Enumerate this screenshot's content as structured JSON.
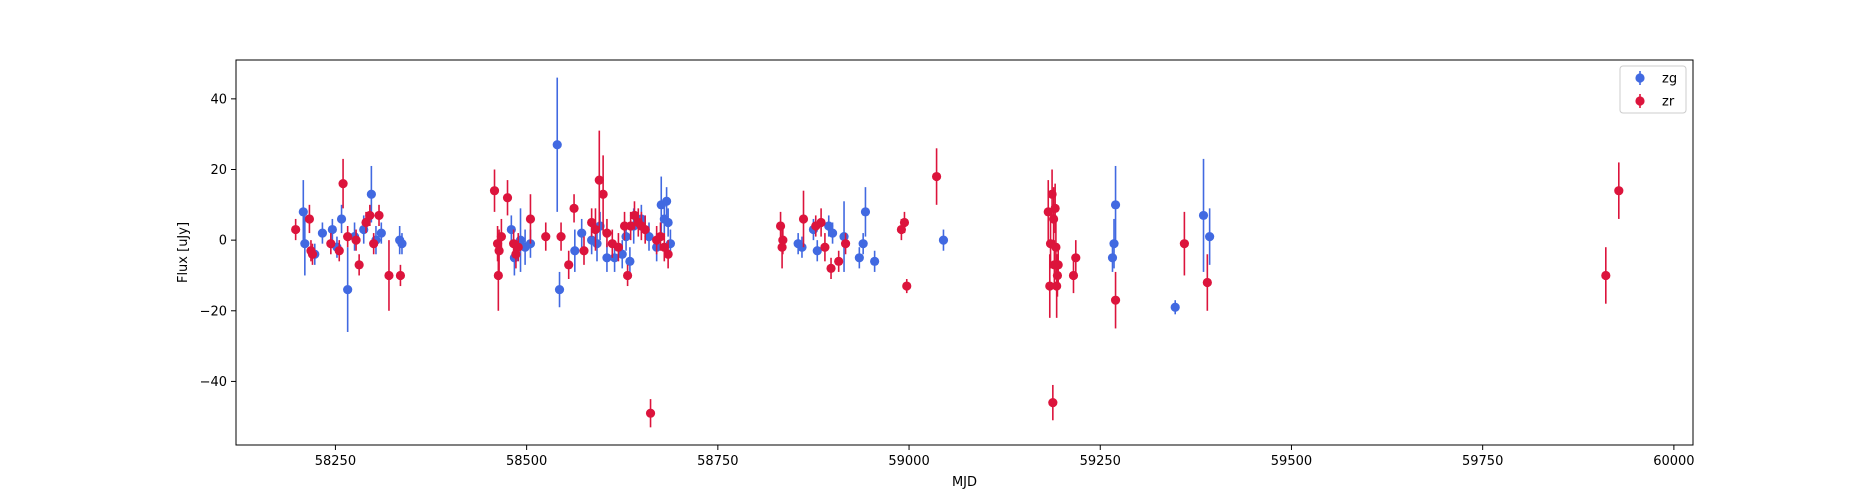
{
  "chart_data": {
    "type": "scatter",
    "xlabel": "MJD",
    "ylabel": "Flux [uJy]",
    "xlim": [
      58120,
      60025
    ],
    "ylim": [
      -58,
      51
    ],
    "xticks": [
      58250,
      58500,
      58750,
      59000,
      59250,
      59500,
      59750,
      60000
    ],
    "yticks": [
      -40,
      -20,
      0,
      20,
      40
    ],
    "legend_position": "top-right",
    "series": [
      {
        "name": "zg",
        "color": "#4169e1",
        "points": [
          {
            "x": 58208,
            "y": 8,
            "err": 9
          },
          {
            "x": 58210,
            "y": -1,
            "err": 9
          },
          {
            "x": 58223,
            "y": -4,
            "err": 3
          },
          {
            "x": 58233,
            "y": 2,
            "err": 3
          },
          {
            "x": 58246,
            "y": 3,
            "err": 3
          },
          {
            "x": 58252,
            "y": -2,
            "err": 3
          },
          {
            "x": 58258,
            "y": 6,
            "err": 4
          },
          {
            "x": 58266,
            "y": -14,
            "err": 12
          },
          {
            "x": 58275,
            "y": 1,
            "err": 4
          },
          {
            "x": 58287,
            "y": 3,
            "err": 4
          },
          {
            "x": 58297,
            "y": 13,
            "err": 8
          },
          {
            "x": 58303,
            "y": 0,
            "err": 4
          },
          {
            "x": 58310,
            "y": 2,
            "err": 3
          },
          {
            "x": 58334,
            "y": 0,
            "err": 4
          },
          {
            "x": 58337,
            "y": -1,
            "err": 3
          },
          {
            "x": 58480,
            "y": 3,
            "err": 4
          },
          {
            "x": 58484,
            "y": -5,
            "err": 5
          },
          {
            "x": 58492,
            "y": 0,
            "err": 9
          },
          {
            "x": 58498,
            "y": -2,
            "err": 5
          },
          {
            "x": 58505,
            "y": -1,
            "err": 4
          },
          {
            "x": 58540,
            "y": 27,
            "err": 19
          },
          {
            "x": 58543,
            "y": -14,
            "err": 5
          },
          {
            "x": 58563,
            "y": -3,
            "err": 6
          },
          {
            "x": 58572,
            "y": 2,
            "err": 4
          },
          {
            "x": 58585,
            "y": 0,
            "err": 4
          },
          {
            "x": 58592,
            "y": -1,
            "err": 5
          },
          {
            "x": 58596,
            "y": 4,
            "err": 4
          },
          {
            "x": 58605,
            "y": -5,
            "err": 4
          },
          {
            "x": 58615,
            "y": -5,
            "err": 4
          },
          {
            "x": 58625,
            "y": -4,
            "err": 4
          },
          {
            "x": 58630,
            "y": 1,
            "err": 4
          },
          {
            "x": 58635,
            "y": -6,
            "err": 4
          },
          {
            "x": 58640,
            "y": 4,
            "err": 5
          },
          {
            "x": 58650,
            "y": 6,
            "err": 4
          },
          {
            "x": 58660,
            "y": 1,
            "err": 4
          },
          {
            "x": 58670,
            "y": -2,
            "err": 4
          },
          {
            "x": 58676,
            "y": 10,
            "err": 8
          },
          {
            "x": 58680,
            "y": 6,
            "err": 4
          },
          {
            "x": 58683,
            "y": 11,
            "err": 4
          },
          {
            "x": 58685,
            "y": 5,
            "err": 4
          },
          {
            "x": 58688,
            "y": -1,
            "err": 4
          },
          {
            "x": 58855,
            "y": -1,
            "err": 3
          },
          {
            "x": 58860,
            "y": -2,
            "err": 3
          },
          {
            "x": 58875,
            "y": 3,
            "err": 3
          },
          {
            "x": 58880,
            "y": -3,
            "err": 3
          },
          {
            "x": 58895,
            "y": 4,
            "err": 3
          },
          {
            "x": 58900,
            "y": 2,
            "err": 3
          },
          {
            "x": 58915,
            "y": 1,
            "err": 10
          },
          {
            "x": 58935,
            "y": -5,
            "err": 3
          },
          {
            "x": 58940,
            "y": -1,
            "err": 3
          },
          {
            "x": 58943,
            "y": 8,
            "err": 7
          },
          {
            "x": 58955,
            "y": -6,
            "err": 3
          },
          {
            "x": 59045,
            "y": 0,
            "err": 3
          },
          {
            "x": 59266,
            "y": -5,
            "err": 4
          },
          {
            "x": 59268,
            "y": -1,
            "err": 7
          },
          {
            "x": 59270,
            "y": 10,
            "err": 11
          },
          {
            "x": 59348,
            "y": -19,
            "err": 2
          },
          {
            "x": 59385,
            "y": 7,
            "err": 16
          },
          {
            "x": 59393,
            "y": 1,
            "err": 8
          }
        ]
      },
      {
        "name": "zr",
        "color": "#dc143c",
        "points": [
          {
            "x": 58198,
            "y": 3,
            "err": 3
          },
          {
            "x": 58216,
            "y": 6,
            "err": 4
          },
          {
            "x": 58218,
            "y": -3,
            "err": 3
          },
          {
            "x": 58220,
            "y": -4,
            "err": 3
          },
          {
            "x": 58244,
            "y": -1,
            "err": 3
          },
          {
            "x": 58255,
            "y": -3,
            "err": 3
          },
          {
            "x": 58260,
            "y": 16,
            "err": 7
          },
          {
            "x": 58266,
            "y": 1,
            "err": 3
          },
          {
            "x": 58277,
            "y": 0,
            "err": 3
          },
          {
            "x": 58281,
            "y": -7,
            "err": 3
          },
          {
            "x": 58290,
            "y": 5,
            "err": 3
          },
          {
            "x": 58295,
            "y": 7,
            "err": 3
          },
          {
            "x": 58300,
            "y": -1,
            "err": 3
          },
          {
            "x": 58307,
            "y": 7,
            "err": 3
          },
          {
            "x": 58320,
            "y": -10,
            "err": 10
          },
          {
            "x": 58335,
            "y": -10,
            "err": 3
          },
          {
            "x": 58458,
            "y": 14,
            "err": 6
          },
          {
            "x": 58462,
            "y": -1,
            "err": 5
          },
          {
            "x": 58463,
            "y": -10,
            "err": 10
          },
          {
            "x": 58464,
            "y": -3,
            "err": 6
          },
          {
            "x": 58467,
            "y": 1,
            "err": 5
          },
          {
            "x": 58475,
            "y": 12,
            "err": 5
          },
          {
            "x": 58483,
            "y": -1,
            "err": 4
          },
          {
            "x": 58486,
            "y": -4,
            "err": 4
          },
          {
            "x": 58489,
            "y": -2,
            "err": 4
          },
          {
            "x": 58505,
            "y": 6,
            "err": 7
          },
          {
            "x": 58525,
            "y": 1,
            "err": 4
          },
          {
            "x": 58545,
            "y": 1,
            "err": 4
          },
          {
            "x": 58555,
            "y": -7,
            "err": 4
          },
          {
            "x": 58562,
            "y": 9,
            "err": 4
          },
          {
            "x": 58575,
            "y": -3,
            "err": 4
          },
          {
            "x": 58585,
            "y": 5,
            "err": 4
          },
          {
            "x": 58590,
            "y": 3,
            "err": 6
          },
          {
            "x": 58595,
            "y": 17,
            "err": 14
          },
          {
            "x": 58600,
            "y": 13,
            "err": 11
          },
          {
            "x": 58605,
            "y": 2,
            "err": 4
          },
          {
            "x": 58612,
            "y": -1,
            "err": 4
          },
          {
            "x": 58620,
            "y": -2,
            "err": 4
          },
          {
            "x": 58628,
            "y": 4,
            "err": 4
          },
          {
            "x": 58632,
            "y": -10,
            "err": 3
          },
          {
            "x": 58636,
            "y": 4,
            "err": 4
          },
          {
            "x": 58641,
            "y": 7,
            "err": 4
          },
          {
            "x": 58646,
            "y": 5,
            "err": 4
          },
          {
            "x": 58650,
            "y": 4,
            "err": 4
          },
          {
            "x": 58655,
            "y": 3,
            "err": 4
          },
          {
            "x": 58662,
            "y": -49,
            "err": 4
          },
          {
            "x": 58670,
            "y": 0,
            "err": 4
          },
          {
            "x": 58675,
            "y": 1,
            "err": 4
          },
          {
            "x": 58680,
            "y": -2,
            "err": 4
          },
          {
            "x": 58685,
            "y": -4,
            "err": 4
          },
          {
            "x": 58832,
            "y": 4,
            "err": 4
          },
          {
            "x": 58834,
            "y": -2,
            "err": 6
          },
          {
            "x": 58835,
            "y": 0,
            "err": 4
          },
          {
            "x": 58862,
            "y": 6,
            "err": 8
          },
          {
            "x": 58878,
            "y": 4,
            "err": 3
          },
          {
            "x": 58885,
            "y": 5,
            "err": 4
          },
          {
            "x": 58890,
            "y": -2,
            "err": 4
          },
          {
            "x": 58898,
            "y": -8,
            "err": 3
          },
          {
            "x": 58908,
            "y": -6,
            "err": 3
          },
          {
            "x": 58917,
            "y": -1,
            "err": 3
          },
          {
            "x": 58990,
            "y": 3,
            "err": 3
          },
          {
            "x": 58994,
            "y": 5,
            "err": 3
          },
          {
            "x": 58997,
            "y": -13,
            "err": 2
          },
          {
            "x": 59036,
            "y": 18,
            "err": 8
          },
          {
            "x": 59182,
            "y": 8,
            "err": 9
          },
          {
            "x": 59184,
            "y": -13,
            "err": 9
          },
          {
            "x": 59185,
            "y": -1,
            "err": 7
          },
          {
            "x": 59187,
            "y": 13,
            "err": 7
          },
          {
            "x": 59188,
            "y": -46,
            "err": 5
          },
          {
            "x": 59189,
            "y": 6,
            "err": 9
          },
          {
            "x": 59190,
            "y": -7,
            "err": 7
          },
          {
            "x": 59191,
            "y": 9,
            "err": 7
          },
          {
            "x": 59192,
            "y": -2,
            "err": 8
          },
          {
            "x": 59193,
            "y": -13,
            "err": 9
          },
          {
            "x": 59194,
            "y": -10,
            "err": 6
          },
          {
            "x": 59195,
            "y": -7,
            "err": 6
          },
          {
            "x": 59215,
            "y": -10,
            "err": 5
          },
          {
            "x": 59218,
            "y": -5,
            "err": 5
          },
          {
            "x": 59270,
            "y": -17,
            "err": 8
          },
          {
            "x": 59360,
            "y": -1,
            "err": 9
          },
          {
            "x": 59390,
            "y": -12,
            "err": 8
          },
          {
            "x": 59911,
            "y": -10,
            "err": 8
          },
          {
            "x": 59928,
            "y": 14,
            "err": 8
          }
        ]
      }
    ]
  }
}
